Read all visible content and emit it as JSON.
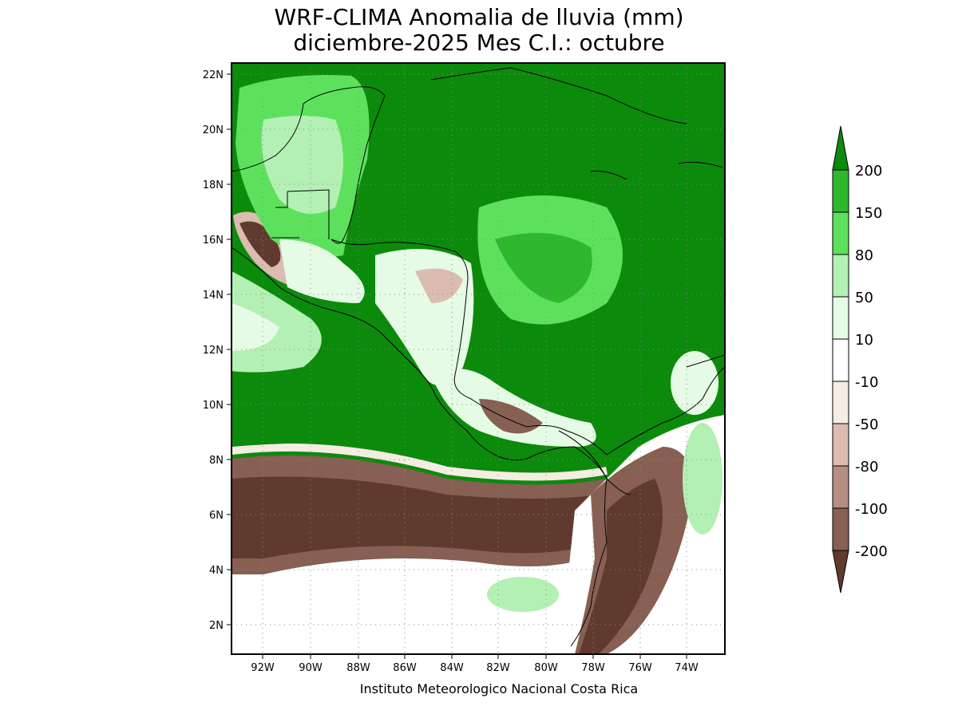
{
  "title": {
    "line1": "WRF-CLIMA Anomalia de lluvia (mm)",
    "line2": "diciembre-2025 Mes C.I.: octubre"
  },
  "footer": "Instituto Meteorologico Nacional Costa Rica",
  "map": {
    "lon_range": [
      -93.3,
      -72.7
    ],
    "lat_range": [
      0.9,
      22.4
    ],
    "lon_ticks": [
      "92W",
      "90W",
      "88W",
      "86W",
      "84W",
      "82W",
      "80W",
      "78W",
      "76W",
      "74W"
    ],
    "lat_ticks": [
      "2N",
      "4N",
      "6N",
      "8N",
      "10N",
      "12N",
      "14N",
      "16N",
      "18N",
      "20N",
      "22N"
    ],
    "grid": "dotted"
  },
  "legend": {
    "labels": [
      "200",
      "150",
      "80",
      "50",
      "10",
      "-10",
      "-50",
      "-80",
      "-100",
      "-200"
    ],
    "colors": {
      "gt200": "#0c8a0c",
      "150_200": "#2db82d",
      "80_150": "#5de15d",
      "50_80": "#b3f0b3",
      "10_50": "#e5fbe5",
      "m10_10": "#ffffff",
      "m50_m10": "#f5ece3",
      "m80_m50": "#dcbcb0",
      "m100_m80": "#b68e81",
      "m200_m100": "#875f53",
      "lt_m200": "#613a2f"
    }
  }
}
